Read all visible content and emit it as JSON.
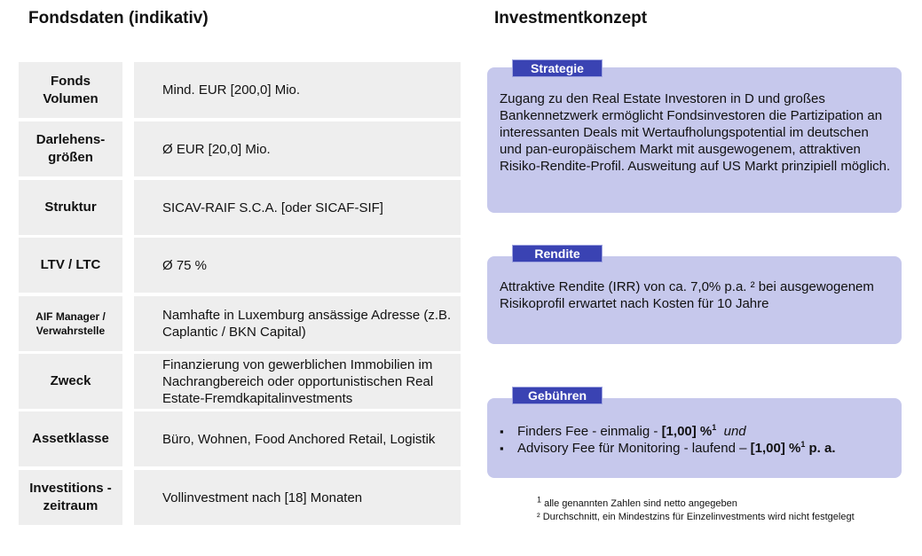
{
  "headings": {
    "left": "Fondsdaten (indikativ)",
    "right": "Investmentkonzept"
  },
  "table": [
    {
      "label": "Fonds Volumen",
      "value": "Mind. EUR [200,0] Mio."
    },
    {
      "label": "Darlehens-größen",
      "value": "Ø EUR [20,0] Mio."
    },
    {
      "label": "Struktur",
      "value": "SICAV-RAIF S.C.A. [oder SICAF-SIF]"
    },
    {
      "label": "LTV / LTC",
      "value": "Ø 75 %"
    },
    {
      "label": "AIF Manager / Verwahrstelle",
      "value": "Namhafte in Luxemburg ansässige Adresse (z.B. Caplantic / BKN Capital)"
    },
    {
      "label": "Zweck",
      "value": "Finanzierung von gewerblichen Immobilien im Nachrangbereich oder opportunistischen Real Estate-Fremdkapitalinvestments"
    },
    {
      "label": "Assetklasse",
      "value": "Büro, Wohnen, Food Anchored Retail, Logistik"
    },
    {
      "label": "Investitions -zeitraum",
      "value": "Vollinvestment nach [18] Monaten"
    }
  ],
  "strategie": {
    "title": "Strategie",
    "text": "Zugang zu den Real Estate Investoren in D und großes Bankennetzwerk ermöglicht Fondsinvestoren die Partizipation an interessanten Deals mit Wertaufholungspotential im deutschen und pan-europäischem Markt mit ausgewogenem, attraktiven Risiko-Rendite-Profil. Ausweitung auf US Markt prinzipiell möglich."
  },
  "rendite": {
    "title": "Rendite",
    "text": "Attraktive Rendite (IRR) von ca. 7,0% p.a. ² bei ausgewogenem Risikoprofil erwartet nach Kosten für 10 Jahre"
  },
  "gebuehren": {
    "title": "Gebühren",
    "item1_text": "Finders Fee - einmalig - ",
    "item1_bold": "[1,00] %",
    "item1_sup": "1",
    "item1_tail": "und",
    "item2_text": "Advisory Fee für Monitoring - laufend – ",
    "item2_bold": "[1,00] %",
    "item2_sup": "1",
    "item2_tail": " p. a."
  },
  "footnotes": {
    "f1_mark": "1",
    "f1_text": " alle genannten Zahlen sind netto angegeben",
    "f2_text": "² Durchschnitt, ein Mindestzins für Einzelinvestments wird nicht festgelegt"
  }
}
